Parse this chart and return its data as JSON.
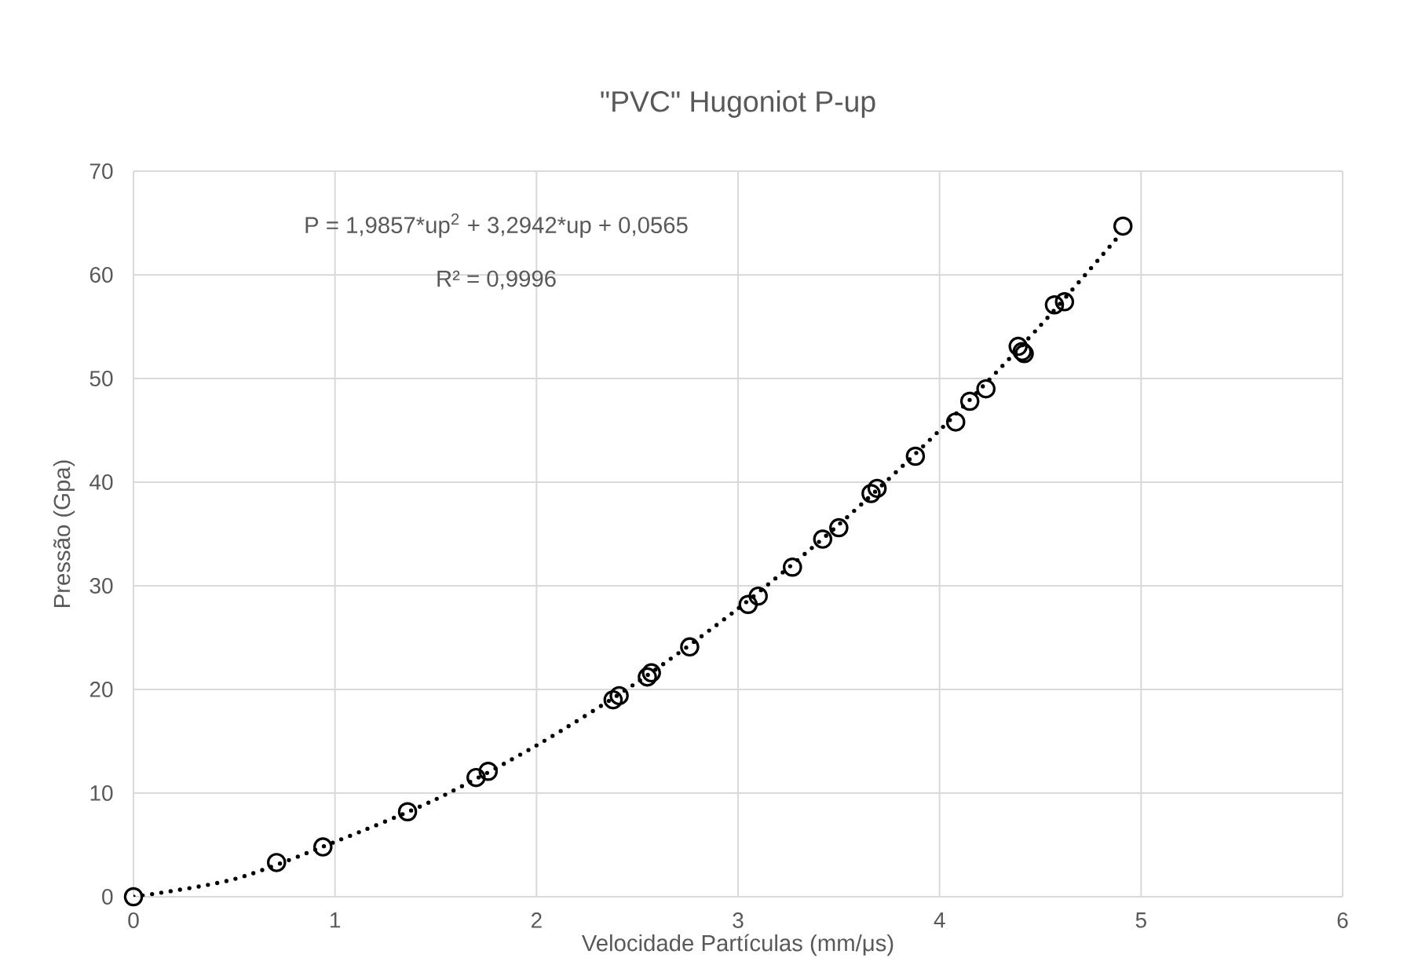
{
  "chart_data": {
    "type": "scatter",
    "title": "\"PVC\" Hugoniot P-up",
    "xlabel": "Velocidade Partículas (mm/μs)",
    "ylabel": "Pressão (Gpa)",
    "annotations": [
      "P = 1,9857*up$^{2}$ + 3,2942*up + 0,0565",
      "R² = 0,9996"
    ],
    "xlim": [
      0,
      6
    ],
    "xticks": [
      0,
      1,
      2,
      3,
      4,
      5,
      6
    ],
    "ylim": [
      0,
      70
    ],
    "yticks": [
      0,
      10,
      20,
      30,
      40,
      50,
      60,
      70
    ],
    "grid": true,
    "series": [
      {
        "color": "#000000",
        "marker": "circle",
        "x": [
          0,
          0.71,
          0.94,
          1.36,
          1.7,
          1.76,
          2.38,
          2.41,
          2.55,
          2.57,
          2.76,
          3.05,
          3.1,
          3.27,
          3.42,
          3.5,
          3.66,
          3.69,
          3.88,
          4.08,
          4.15,
          4.23,
          4.39,
          4.41,
          4.42,
          4.57,
          4.62,
          4.91
        ],
        "values": [
          0,
          3.3,
          4.8,
          8.2,
          11.5,
          12.1,
          19.0,
          19.4,
          21.2,
          21.6,
          24.1,
          28.2,
          29.0,
          31.8,
          34.5,
          35.6,
          38.9,
          39.4,
          42.5,
          45.8,
          47.8,
          49.0,
          53.1,
          52.6,
          52.4,
          57.1,
          57.4,
          64.7
        ]
      },
      {
        "type": "line",
        "color": "#000000",
        "marker": "none",
        "line_style": "dotted",
        "x": [
          0,
          0.5,
          1,
          1.5,
          2,
          2.5,
          3,
          3.5,
          4,
          4.5,
          4.9
        ],
        "values": [
          0,
          1.7,
          5.3,
          9.4,
          14.6,
          20.7,
          27.8,
          35.9,
          45.0,
          55.1,
          64.0
        ]
      }
    ]
  }
}
